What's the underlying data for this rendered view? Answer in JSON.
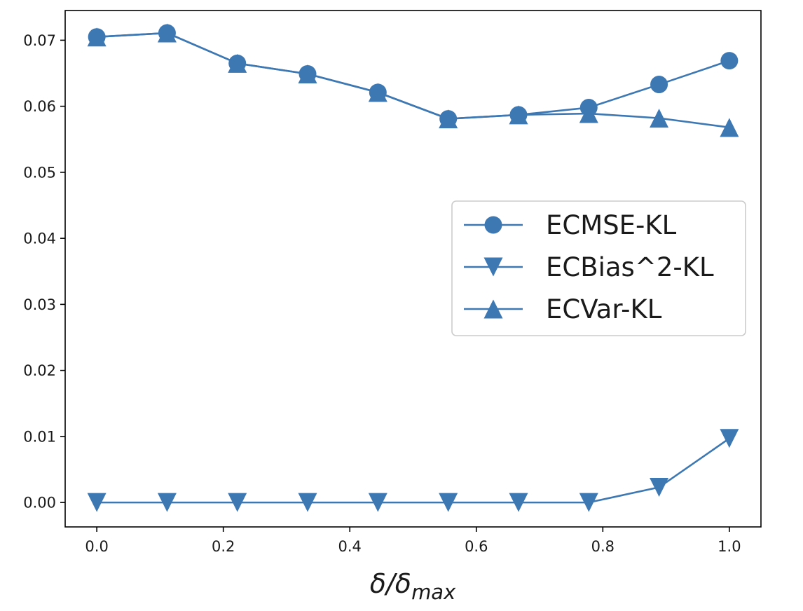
{
  "chart_data": {
    "type": "line",
    "title": "",
    "xlabel": {
      "main": "δ/δ",
      "sub": "max"
    },
    "ylabel": "",
    "xlim": [
      -0.05,
      1.05
    ],
    "ylim": [
      -0.0037,
      0.0745
    ],
    "x": [
      0.0,
      0.1111,
      0.2222,
      0.3333,
      0.4444,
      0.5556,
      0.6667,
      0.7778,
      0.8889,
      1.0
    ],
    "xticks": [
      "0.0",
      "0.2",
      "0.4",
      "0.6",
      "0.8",
      "1.0"
    ],
    "yticks": [
      "0.00",
      "0.01",
      "0.02",
      "0.03",
      "0.04",
      "0.05",
      "0.06",
      "0.07"
    ],
    "legend_position": "center-right",
    "color": "#3d78b3",
    "series": [
      {
        "name": "ECMSE-KL",
        "marker": "circle",
        "values": [
          0.0705,
          0.0711,
          0.0665,
          0.0649,
          0.0621,
          0.0581,
          0.0587,
          0.0598,
          0.0633,
          0.0669
        ]
      },
      {
        "name": "ECBias^2-KL",
        "marker": "triangle-down",
        "values": [
          0.0,
          0.0,
          0.0,
          0.0,
          0.0,
          0.0,
          0.0,
          0.0,
          0.0023,
          0.0097
        ]
      },
      {
        "name": "ECVar-KL",
        "marker": "triangle-up",
        "values": [
          0.0705,
          0.0711,
          0.0665,
          0.0649,
          0.0621,
          0.0581,
          0.0587,
          0.0589,
          0.0582,
          0.0568
        ]
      }
    ]
  }
}
